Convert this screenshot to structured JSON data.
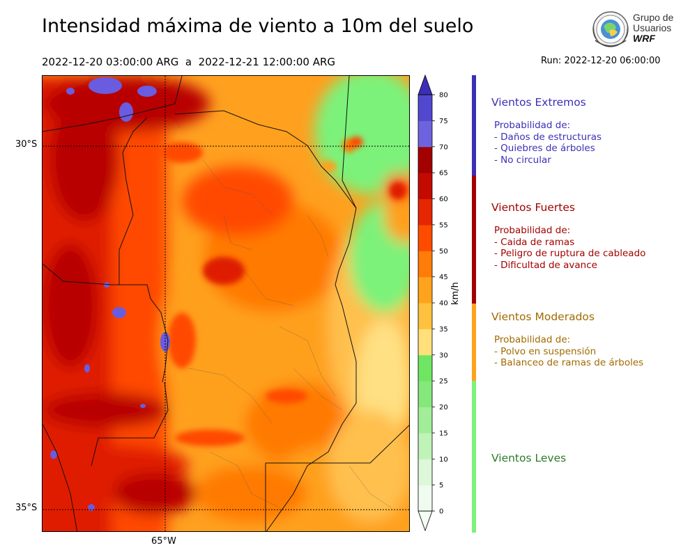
{
  "header": {
    "title": "Intensidad máxima de viento a 10m del suelo",
    "period": "2022-12-20 03:00:00 ARG  a  2022-12-21 12:00:00 ARG",
    "run": "Run: 2022-12-20 06:00:00"
  },
  "logo": {
    "line1": "Grupo de",
    "line2": "Usuarios",
    "line3": "WRF"
  },
  "map": {
    "lat_labels": [
      "30°S",
      "35°S"
    ],
    "lon_labels": [
      "65°W"
    ],
    "palette": {
      "green_light": "#7cf27a",
      "yellow": "#ffe082",
      "light_orange": "#ffc04d",
      "orange": "#ffa01f",
      "dark_orange": "#ff7a00",
      "red_orange": "#ff4a00",
      "red": "#e01b00",
      "dark_red": "#b80000",
      "purple": "#6a5ce0"
    }
  },
  "colorbar": {
    "unit": "km/h",
    "ticks": [
      "0",
      "5",
      "10",
      "15",
      "20",
      "25",
      "30",
      "35",
      "40",
      "45",
      "50",
      "55",
      "60",
      "65",
      "70",
      "75",
      "80"
    ],
    "colors": [
      "#f0fbef",
      "#dcf8d8",
      "#c0f3b8",
      "#a2ee98",
      "#86e77c",
      "#6fe663",
      "#ffe07a",
      "#ffc13e",
      "#ffa31c",
      "#ff7c08",
      "#ff4b00",
      "#e52600",
      "#c40a00",
      "#a30000",
      "#6e63de",
      "#5248cf",
      "#3b2fb8"
    ],
    "top_color": "#3b2fb8",
    "bottom_color": "#f5fdf4"
  },
  "categories": [
    {
      "title": "Vientos Extremos",
      "color": "#3b2fb8",
      "lines": [
        "Probabilidad de:",
        "- Daños de estructuras",
        "- Quiebres de árboles",
        "- No circular"
      ]
    },
    {
      "title": "Vientos Fuertes",
      "color": "#a30000",
      "lines": [
        "Probabilidad de:",
        "- Caida de ramas",
        "- Peligro de ruptura de cableado",
        "- Dificultad de avance"
      ]
    },
    {
      "title": "Vientos Moderados",
      "color": "#a26a00",
      "bar_color": "#ffa31c",
      "lines": [
        "Probabilidad de:",
        "- Polvo en suspensión",
        "- Balanceo de ramas de árboles"
      ]
    },
    {
      "title": "Vientos Leves",
      "color": "#2f7a2a",
      "bar_color": "#7cf27a",
      "lines": []
    }
  ]
}
